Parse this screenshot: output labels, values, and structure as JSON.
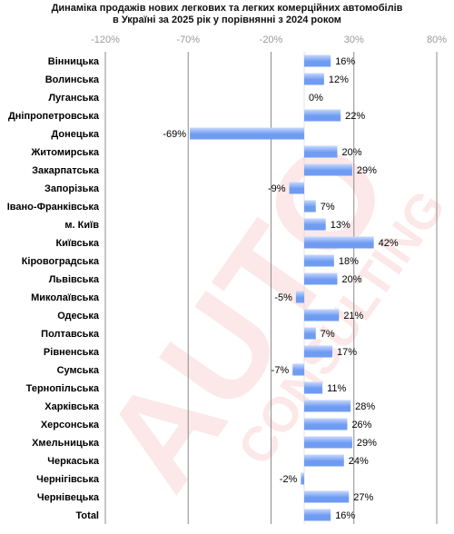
{
  "chart_data": {
    "type": "bar",
    "orientation": "horizontal",
    "title": "Динаміка продажів нових легкових та легких комерційних автомобілів в Україні за 2025 рік у порівнянні з 2024 роком",
    "title_lines": [
      "Динаміка продажів нових легкових та легких комерційних автомобілів",
      "в Україні за 2025 рік у порівнянні з 2024 роком"
    ],
    "xlim": [
      -120,
      80
    ],
    "x_ticks": [
      -120,
      -70,
      -20,
      30,
      80
    ],
    "x_tick_labels": [
      "-120%",
      "-70%",
      "-20%",
      "30%",
      "80%"
    ],
    "grid": true,
    "categories": [
      "Вінницька",
      "Волинська",
      "Луганська",
      "Дніпропетровська",
      "Донецька",
      "Житомирська",
      "Закарпатська",
      "Запорізька",
      "Івано-Франківська",
      "м. Київ",
      "Київська",
      "Кіровоградська",
      "Львівська",
      "Миколаївська",
      "Одеська",
      "Полтавська",
      "Рівненська",
      "Сумська",
      "Тернопільська",
      "Харківська",
      "Херсонська",
      "Хмельницька",
      "Черкаська",
      "Чернігівська",
      "Чернівецька",
      "Total"
    ],
    "values": [
      16,
      12,
      0,
      22,
      -69,
      20,
      29,
      -9,
      7,
      13,
      42,
      18,
      20,
      -5,
      21,
      7,
      17,
      -7,
      11,
      28,
      26,
      29,
      24,
      -2,
      27,
      16
    ],
    "value_labels": [
      "16%",
      "12%",
      "0%",
      "22%",
      "-69%",
      "20%",
      "29%",
      "-9%",
      "7%",
      "13%",
      "42%",
      "18%",
      "20%",
      "-5%",
      "21%",
      "7%",
      "17%",
      "-7%",
      "11%",
      "28%",
      "26%",
      "29%",
      "24%",
      "-2%",
      "27%",
      "16%"
    ],
    "bar_color_light": "#c8d8ff",
    "bar_color_dark": "#6f9cf2",
    "grid_color": "#8c8c8c"
  },
  "watermark": {
    "text_big": "AUTO",
    "text_small": "CONSULTING",
    "color": "#e61e1e"
  }
}
